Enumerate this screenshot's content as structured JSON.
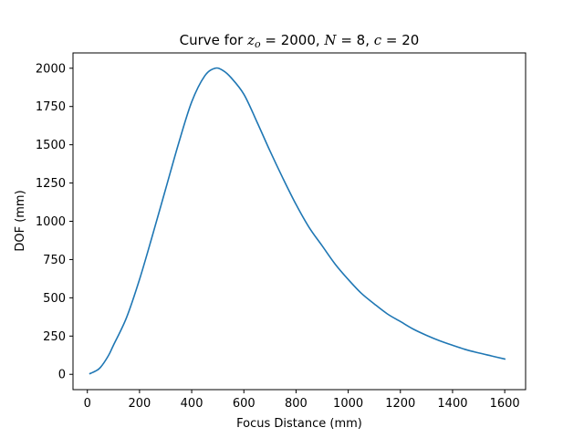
{
  "chart_data": {
    "type": "line",
    "title": {
      "prefix": "Curve for ",
      "var_z": "z",
      "var_z_sub": "o",
      "eq1": " = 2000, ",
      "var_n": "N",
      "eq2": " = 8, ",
      "var_c": "c",
      "eq3": " = 20"
    },
    "xlabel": "Focus Distance (mm)",
    "ylabel": "DOF (mm)",
    "xlim": [
      -55,
      1680
    ],
    "ylim": [
      -100,
      2100
    ],
    "xticks": [
      0,
      200,
      400,
      600,
      800,
      1000,
      1200,
      1400,
      1600
    ],
    "yticks": [
      0,
      250,
      500,
      750,
      1000,
      1250,
      1500,
      1750,
      2000
    ],
    "grid": false,
    "line_color": "#1f77b4",
    "series": [
      {
        "x": [
          10,
          30,
          50,
          80,
          100,
          150,
          200,
          250,
          300,
          350,
          400,
          450,
          490,
          520,
          550,
          600,
          650,
          700,
          750,
          800,
          850,
          900,
          950,
          1000,
          1050,
          1100,
          1150,
          1200,
          1250,
          1300,
          1350,
          1400,
          1450,
          1500,
          1550,
          1600
        ],
        "y": [
          5,
          20,
          45,
          120,
          190,
          370,
          620,
          910,
          1210,
          1510,
          1780,
          1950,
          2000,
          1985,
          1940,
          1830,
          1650,
          1460,
          1280,
          1110,
          960,
          840,
          720,
          620,
          530,
          460,
          395,
          345,
          295,
          255,
          220,
          190,
          162,
          140,
          120,
          100
        ]
      }
    ]
  }
}
